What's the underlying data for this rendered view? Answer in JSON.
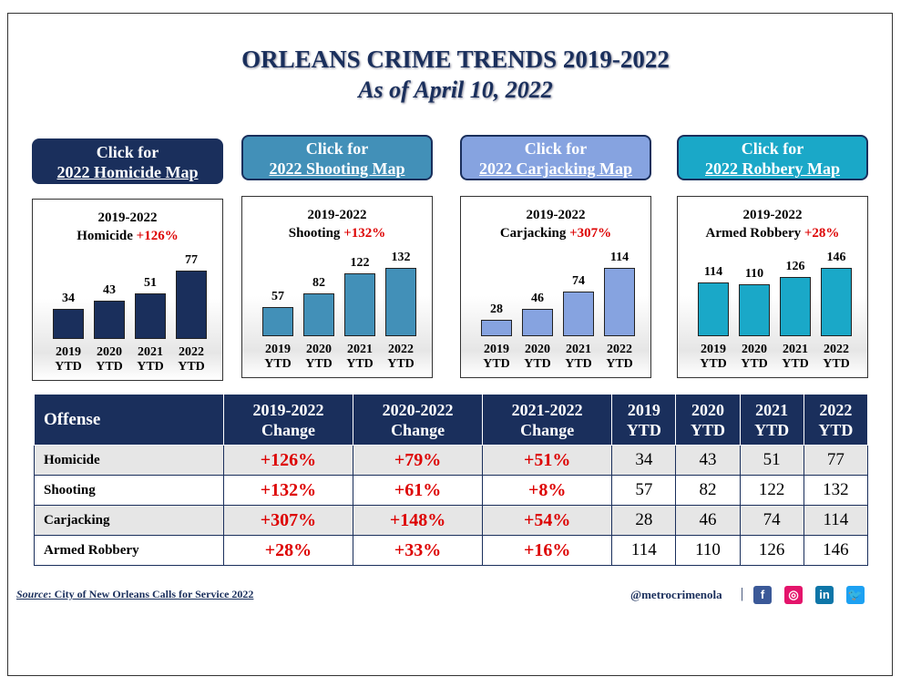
{
  "header": {
    "title": "ORLEANS CRIME TRENDS 2019-2022",
    "subtitle": "As of April 10, 2022"
  },
  "buttons": [
    {
      "line1": "Click for",
      "line2": "2022 Homicide Map",
      "color": "#1a2f5c"
    },
    {
      "line1": "Click for",
      "line2": "2022 Shooting Map",
      "color": "#4290b8"
    },
    {
      "line1": "Click for",
      "line2": "2022 Carjacking Map",
      "color": "#86a3e0"
    },
    {
      "line1": "Click for",
      "line2": "2022 Robbery Map",
      "color": "#1aa8c8"
    }
  ],
  "chart_data": [
    {
      "type": "bar",
      "title": "2019-2022",
      "offense": "Homicide",
      "change": "+126%",
      "categories": [
        "2019 YTD",
        "2020 YTD",
        "2021 YTD",
        "2022 YTD"
      ],
      "values": [
        34,
        43,
        51,
        77
      ],
      "color": "#1a2f5c"
    },
    {
      "type": "bar",
      "title": "2019-2022",
      "offense": "Shooting",
      "change": "+132%",
      "categories": [
        "2019 YTD",
        "2020 YTD",
        "2021 YTD",
        "2022 YTD"
      ],
      "values": [
        57,
        82,
        122,
        132
      ],
      "color": "#4290b8"
    },
    {
      "type": "bar",
      "title": "2019-2022",
      "offense": "Carjacking",
      "change": "+307%",
      "categories": [
        "2019 YTD",
        "2020 YTD",
        "2021 YTD",
        "2022 YTD"
      ],
      "values": [
        28,
        46,
        74,
        114
      ],
      "color": "#86a3e0"
    },
    {
      "type": "bar",
      "title": "2019-2022",
      "offense": "Armed Robbery",
      "change": "+28%",
      "categories": [
        "2019 YTD",
        "2020 YTD",
        "2021 YTD",
        "2022 YTD"
      ],
      "values": [
        114,
        110,
        126,
        146
      ],
      "color": "#1aa8c8"
    }
  ],
  "table": {
    "headers": [
      [
        "Offense"
      ],
      [
        "2019-2022",
        "Change"
      ],
      [
        "2020-2022",
        "Change"
      ],
      [
        "2021-2022",
        "Change"
      ],
      [
        "2019",
        "YTD"
      ],
      [
        "2020",
        "YTD"
      ],
      [
        "2021",
        "YTD"
      ],
      [
        "2022",
        "YTD"
      ]
    ],
    "rows": [
      [
        "Homicide",
        "+126%",
        "+79%",
        "+51%",
        "34",
        "43",
        "51",
        "77"
      ],
      [
        "Shooting",
        "+132%",
        "+61%",
        "+8%",
        "57",
        "82",
        "122",
        "132"
      ],
      [
        "Carjacking",
        "+307%",
        "+148%",
        "+54%",
        "28",
        "46",
        "74",
        "114"
      ],
      [
        "Armed Robbery",
        "+28%",
        "+33%",
        "+16%",
        "114",
        "110",
        "126",
        "146"
      ]
    ]
  },
  "footer": {
    "source_label": "Source",
    "source_text": ":  City of New Orleans Calls for Service 2022",
    "handle": "@metrocrimenola",
    "separator": "|",
    "social": [
      {
        "icon": "facebook-icon",
        "glyph": "f",
        "color": "#3b5998"
      },
      {
        "icon": "instagram-icon",
        "glyph": "◎",
        "color": "#e4146b"
      },
      {
        "icon": "linkedin-icon",
        "glyph": "in",
        "color": "#0e76a8"
      },
      {
        "icon": "twitter-icon",
        "glyph": "🐦",
        "color": "#1da1f2"
      }
    ]
  }
}
